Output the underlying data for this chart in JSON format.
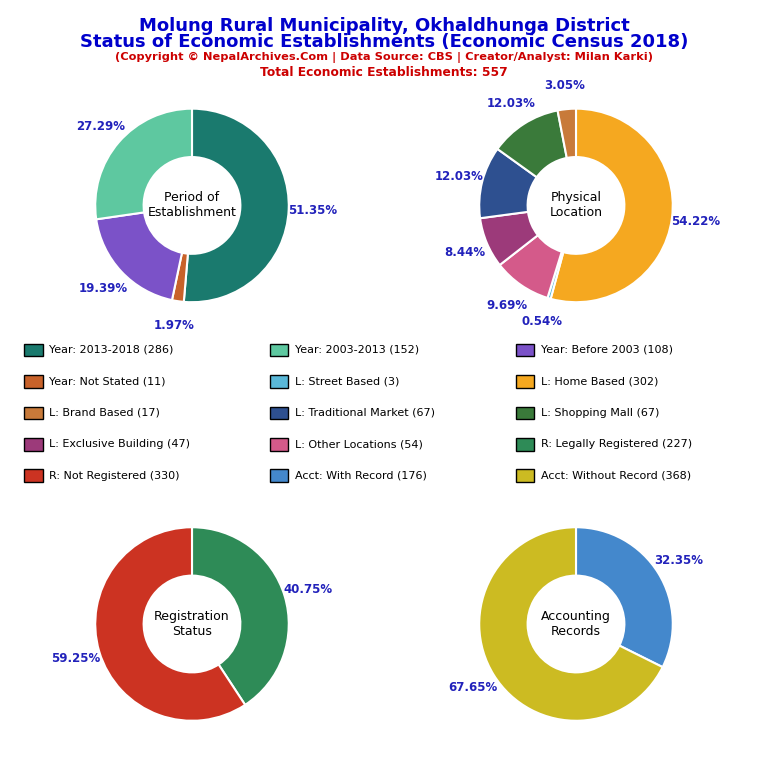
{
  "title_line1": "Molung Rural Municipality, Okhaldhunga District",
  "title_line2": "Status of Economic Establishments (Economic Census 2018)",
  "subtitle": "(Copyright © NepalArchives.Com | Data Source: CBS | Creator/Analyst: Milan Karki)",
  "subtitle2": "Total Economic Establishments: 557",
  "title_color": "#0000CC",
  "subtitle_color": "#CC0000",
  "pie1_title": "Period of\nEstablishment",
  "pie1_values": [
    51.35,
    1.97,
    19.39,
    27.29
  ],
  "pie1_colors": [
    "#1a7a6e",
    "#c8622a",
    "#7b52c8",
    "#5ec8a0"
  ],
  "pie1_labels": [
    "51.35%",
    "1.97%",
    "19.39%",
    "27.29%"
  ],
  "pie2_title": "Physical\nLocation",
  "pie2_values": [
    54.22,
    0.54,
    9.69,
    8.44,
    12.03,
    12.03,
    3.05
  ],
  "pie2_colors": [
    "#f5a820",
    "#5ab8d8",
    "#d45a8a",
    "#9c3a7a",
    "#2e5090",
    "#3a7a3a",
    "#c87a3a"
  ],
  "pie2_labels": [
    "54.22%",
    "0.54%",
    "9.69%",
    "8.44%",
    "12.03%",
    "12.03%",
    "3.05%"
  ],
  "pie3_title": "Registration\nStatus",
  "pie3_values": [
    40.75,
    59.25
  ],
  "pie3_colors": [
    "#2e8b57",
    "#cc3322"
  ],
  "pie3_labels": [
    "40.75%",
    "59.25%"
  ],
  "pie4_title": "Accounting\nRecords",
  "pie4_values": [
    32.35,
    67.65
  ],
  "pie4_colors": [
    "#4488cc",
    "#ccbb22"
  ],
  "pie4_labels": [
    "32.35%",
    "67.65%"
  ],
  "legend_items": [
    {
      "label": "Year: 2013-2018 (286)",
      "color": "#1a7a6e"
    },
    {
      "label": "Year: 2003-2013 (152)",
      "color": "#5ec8a0"
    },
    {
      "label": "Year: Before 2003 (108)",
      "color": "#7b52c8"
    },
    {
      "label": "Year: Not Stated (11)",
      "color": "#c8622a"
    },
    {
      "label": "L: Street Based (3)",
      "color": "#5ab8d8"
    },
    {
      "label": "L: Home Based (302)",
      "color": "#f5a820"
    },
    {
      "label": "L: Brand Based (17)",
      "color": "#c87a3a"
    },
    {
      "label": "L: Traditional Market (67)",
      "color": "#2e5090"
    },
    {
      "label": "L: Shopping Mall (67)",
      "color": "#3a7a3a"
    },
    {
      "label": "L: Exclusive Building (47)",
      "color": "#9c3a7a"
    },
    {
      "label": "L: Other Locations (54)",
      "color": "#d45a8a"
    },
    {
      "label": "R: Legally Registered (227)",
      "color": "#2e8b57"
    },
    {
      "label": "R: Not Registered (330)",
      "color": "#cc3322"
    },
    {
      "label": "Acct: With Record (176)",
      "color": "#4488cc"
    },
    {
      "label": "Acct: Without Record (368)",
      "color": "#ccbb22"
    }
  ]
}
